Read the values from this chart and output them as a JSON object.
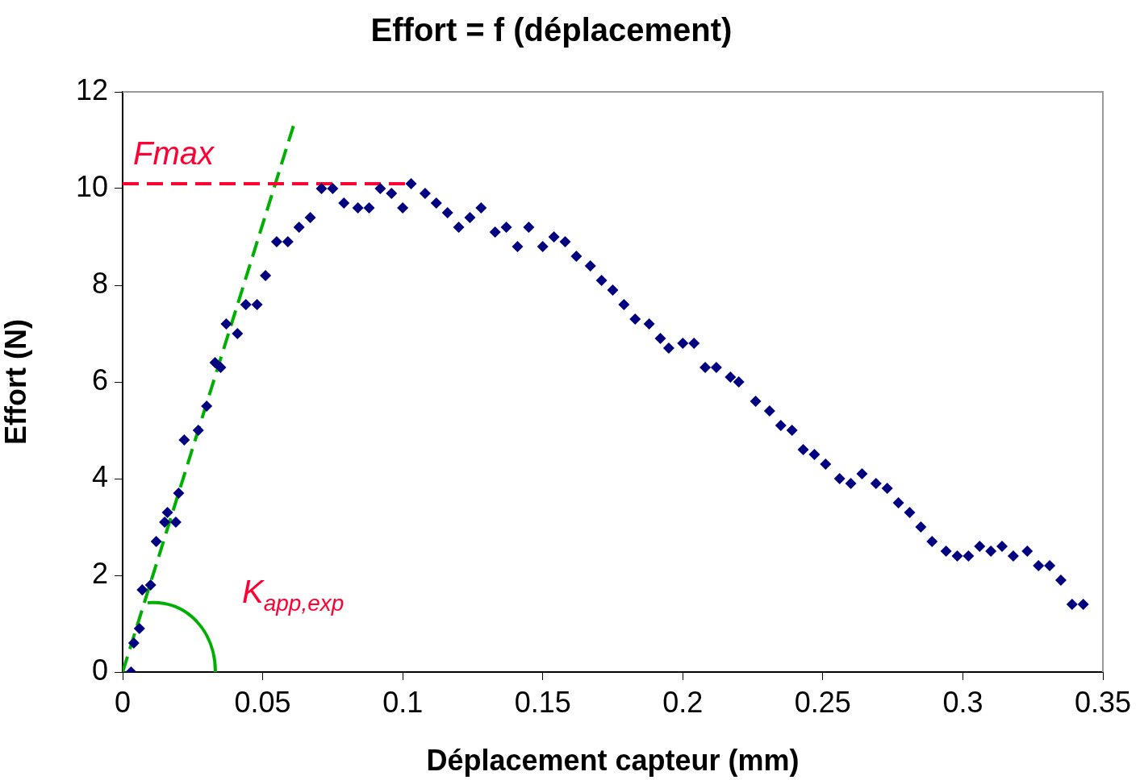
{
  "chart_data": {
    "type": "scatter",
    "title": "Effort = f (déplacement)",
    "xlabel": "Déplacement capteur (mm)",
    "ylabel": "Effort (N)",
    "xlim": [
      0,
      0.35
    ],
    "xticks": [
      0,
      0.05,
      0.1,
      0.15,
      0.2,
      0.25,
      0.3,
      0.35
    ],
    "ylim": [
      0,
      12
    ],
    "yticks": [
      0,
      2,
      4,
      6,
      8,
      10,
      12
    ],
    "grid": false,
    "legend": false,
    "series": [
      {
        "marker": "diamond",
        "color": "#000080",
        "x": [
          0.003,
          0.004,
          0.006,
          0.007,
          0.01,
          0.012,
          0.015,
          0.016,
          0.019,
          0.02,
          0.022,
          0.027,
          0.03,
          0.033,
          0.035,
          0.037,
          0.041,
          0.044,
          0.048,
          0.051,
          0.055,
          0.059,
          0.063,
          0.067,
          0.071,
          0.075,
          0.079,
          0.084,
          0.088,
          0.092,
          0.096,
          0.1,
          0.103,
          0.108,
          0.112,
          0.116,
          0.12,
          0.124,
          0.128,
          0.133,
          0.137,
          0.141,
          0.145,
          0.15,
          0.154,
          0.158,
          0.162,
          0.167,
          0.171,
          0.175,
          0.179,
          0.183,
          0.188,
          0.192,
          0.195,
          0.2,
          0.204,
          0.208,
          0.212,
          0.217,
          0.22,
          0.226,
          0.231,
          0.235,
          0.239,
          0.243,
          0.247,
          0.251,
          0.256,
          0.26,
          0.264,
          0.269,
          0.273,
          0.277,
          0.281,
          0.285,
          0.289,
          0.294,
          0.298,
          0.302,
          0.306,
          0.31,
          0.314,
          0.318,
          0.323,
          0.327,
          0.331,
          0.335,
          0.339,
          0.343
        ],
        "values": [
          0,
          0.6,
          0.9,
          1.7,
          1.8,
          2.7,
          3.1,
          3.3,
          3.1,
          3.7,
          4.8,
          5.0,
          5.5,
          6.4,
          6.3,
          7.2,
          7.0,
          7.6,
          7.6,
          8.2,
          8.9,
          8.9,
          9.2,
          9.4,
          10.0,
          10.0,
          9.7,
          9.6,
          9.6,
          10.0,
          9.9,
          9.6,
          10.1,
          9.9,
          9.7,
          9.5,
          9.2,
          9.4,
          9.6,
          9.1,
          9.2,
          8.8,
          9.2,
          8.8,
          9.0,
          8.9,
          8.6,
          8.4,
          8.1,
          7.9,
          7.6,
          7.3,
          7.2,
          6.9,
          6.7,
          6.8,
          6.8,
          6.3,
          6.3,
          6.1,
          6.0,
          5.6,
          5.4,
          5.1,
          5.0,
          4.6,
          4.5,
          4.3,
          4.0,
          3.9,
          4.1,
          3.9,
          3.8,
          3.5,
          3.3,
          3.0,
          2.7,
          2.5,
          2.4,
          2.4,
          2.6,
          2.5,
          2.6,
          2.4,
          2.5,
          2.2,
          2.2,
          1.9,
          1.4,
          1.4
        ]
      },
      {
        "type": "line",
        "marker": "none",
        "line_style": "dashed",
        "color": "#ff0033",
        "x": [
          0,
          0.103
        ],
        "values": [
          10.1,
          10.1
        ]
      },
      {
        "type": "line",
        "marker": "none",
        "line_style": "dashed",
        "color": "#00b000",
        "x": [
          0,
          0.061
        ],
        "values": [
          0,
          11.3
        ]
      }
    ],
    "annotations": [
      "Fmax",
      "K$_{app,exp}$"
    ]
  }
}
